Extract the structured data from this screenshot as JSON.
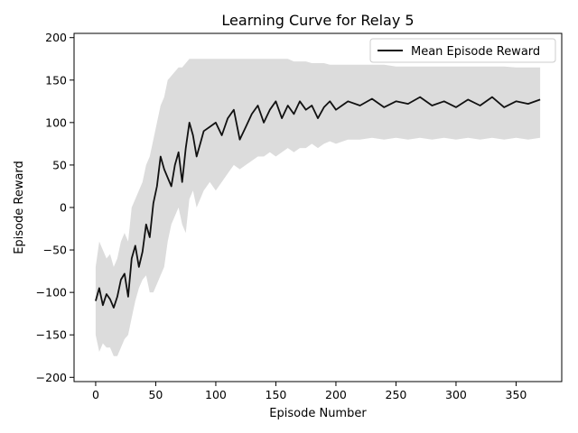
{
  "chart_data": {
    "type": "line",
    "title": "Learning Curve for Relay 5",
    "xlabel": "Episode Number",
    "ylabel": "Episode Reward",
    "xlim": [
      -18,
      388
    ],
    "ylim": [
      -205,
      205
    ],
    "xticks": [
      0,
      50,
      100,
      150,
      200,
      250,
      300,
      350
    ],
    "yticks": [
      -200,
      -150,
      -100,
      -50,
      0,
      50,
      100,
      150,
      200
    ],
    "grid": false,
    "legend_position": "top-right",
    "colors": {
      "mean_line": "#111111",
      "band": "#dcdcdc"
    },
    "series": [
      {
        "name": "Mean Episode Reward",
        "x": [
          0,
          3,
          6,
          9,
          12,
          15,
          18,
          21,
          24,
          27,
          30,
          33,
          36,
          39,
          42,
          45,
          48,
          51,
          54,
          57,
          60,
          63,
          66,
          69,
          72,
          75,
          78,
          81,
          84,
          87,
          90,
          95,
          100,
          105,
          110,
          115,
          120,
          125,
          130,
          135,
          140,
          145,
          150,
          155,
          160,
          165,
          170,
          175,
          180,
          185,
          190,
          195,
          200,
          210,
          220,
          230,
          240,
          250,
          260,
          270,
          280,
          290,
          300,
          310,
          320,
          330,
          340,
          350,
          360,
          370
        ],
        "y": [
          -110,
          -95,
          -115,
          -102,
          -108,
          -118,
          -105,
          -85,
          -78,
          -105,
          -60,
          -45,
          -70,
          -52,
          -20,
          -35,
          5,
          25,
          60,
          45,
          35,
          25,
          50,
          65,
          30,
          70,
          100,
          85,
          60,
          75,
          90,
          95,
          100,
          85,
          105,
          115,
          80,
          95,
          110,
          120,
          100,
          115,
          125,
          105,
          120,
          110,
          125,
          115,
          120,
          105,
          118,
          125,
          115,
          125,
          120,
          128,
          118,
          125,
          122,
          130,
          120,
          125,
          118,
          127,
          120,
          130,
          118,
          125,
          122,
          127
        ],
        "lower": [
          -150,
          -170,
          -160,
          -165,
          -165,
          -175,
          -175,
          -165,
          -155,
          -150,
          -130,
          -110,
          -95,
          -85,
          -80,
          -100,
          -100,
          -90,
          -80,
          -70,
          -40,
          -20,
          -10,
          0,
          -20,
          -30,
          10,
          20,
          0,
          10,
          20,
          30,
          20,
          30,
          40,
          50,
          45,
          50,
          55,
          60,
          60,
          65,
          60,
          65,
          70,
          65,
          70,
          70,
          75,
          70,
          75,
          78,
          75,
          80,
          80,
          82,
          80,
          82,
          80,
          82,
          80,
          82,
          80,
          82,
          80,
          82,
          80,
          82,
          80,
          82
        ],
        "upper": [
          -70,
          -40,
          -50,
          -60,
          -55,
          -70,
          -60,
          -40,
          -30,
          -40,
          0,
          10,
          20,
          30,
          50,
          60,
          80,
          100,
          120,
          130,
          150,
          155,
          160,
          165,
          165,
          170,
          175,
          175,
          175,
          175,
          175,
          175,
          175,
          175,
          175,
          175,
          175,
          175,
          175,
          175,
          175,
          175,
          175,
          175,
          175,
          172,
          172,
          172,
          170,
          170,
          170,
          168,
          168,
          168,
          168,
          168,
          168,
          166,
          166,
          166,
          166,
          166,
          166,
          166,
          166,
          166,
          166,
          165,
          165,
          165
        ]
      }
    ]
  }
}
